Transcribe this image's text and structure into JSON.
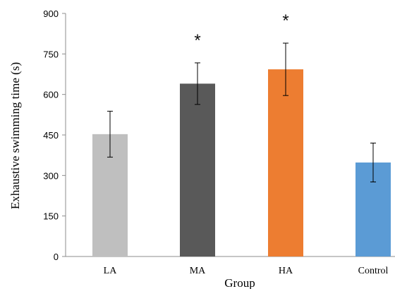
{
  "chart_data": {
    "type": "bar",
    "title": "",
    "xlabel": "Group",
    "ylabel": "Exhaustive swimming time (s)",
    "categories": [
      "LA",
      "MA",
      "HA",
      "Control"
    ],
    "values": [
      453,
      640,
      693,
      348
    ],
    "error": [
      85,
      77,
      97,
      72
    ],
    "significance": [
      "",
      "*",
      "*",
      ""
    ],
    "colors": [
      "#BFBFBF",
      "#595959",
      "#ED7D31",
      "#5B9BD5"
    ],
    "ylim": [
      0,
      900
    ],
    "yticks": [
      0,
      150,
      300,
      450,
      600,
      750,
      900
    ],
    "grid": false,
    "legend": "none"
  }
}
